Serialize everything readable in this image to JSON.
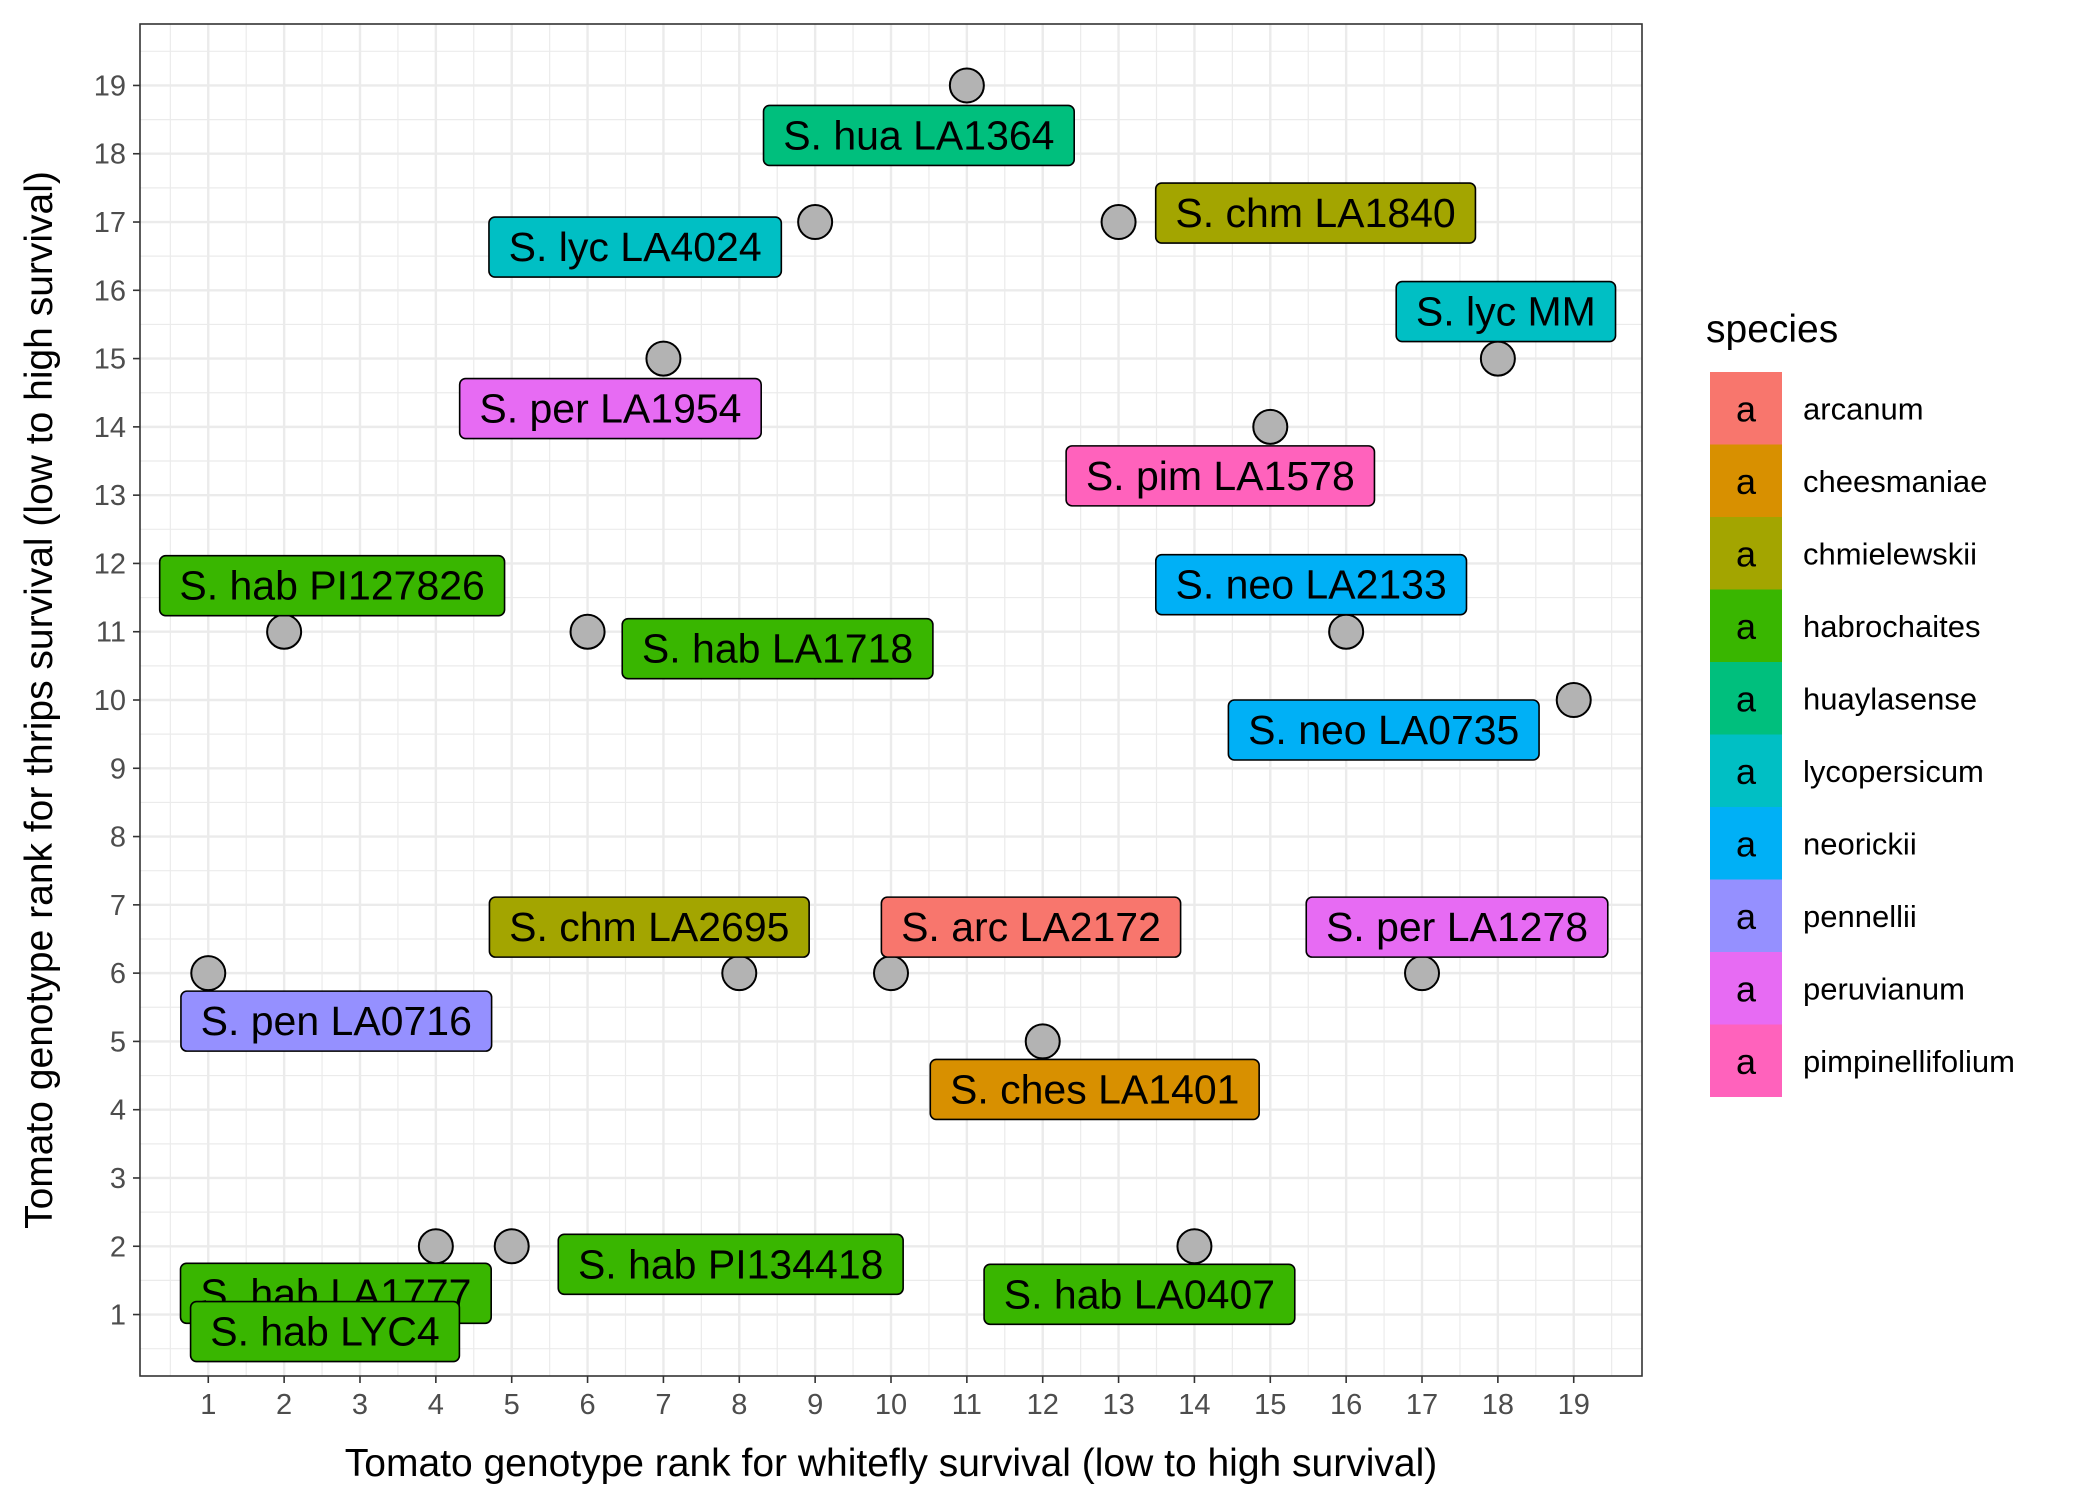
{
  "chart_data": {
    "type": "scatter",
    "title": "",
    "xlabel": "Tomato genotype rank for whitefly survival (low to high survival)",
    "ylabel": "Tomato genotype rank for thrips survival (low to high survival)",
    "xlim": [
      0.1,
      19.9
    ],
    "ylim": [
      0.1,
      19.9
    ],
    "xticks": [
      "1",
      "2",
      "3",
      "4",
      "5",
      "6",
      "7",
      "8",
      "9",
      "10",
      "11",
      "12",
      "13",
      "14",
      "15",
      "16",
      "17",
      "18",
      "19"
    ],
    "yticks": [
      "1",
      "2",
      "3",
      "4",
      "5",
      "6",
      "7",
      "8",
      "9",
      "10",
      "11",
      "12",
      "13",
      "14",
      "15",
      "16",
      "17",
      "18",
      "19"
    ],
    "grid": true,
    "point_color": "#b3b3b3",
    "legend": {
      "title": "species",
      "position": "right",
      "key_glyph": "a",
      "entries": [
        {
          "name": "arcanum",
          "color": "#F8766D"
        },
        {
          "name": "cheesmaniae",
          "color": "#D89000"
        },
        {
          "name": "chmielewskii",
          "color": "#A3A500"
        },
        {
          "name": "habrochaites",
          "color": "#39B600"
        },
        {
          "name": "huaylasense",
          "color": "#00BF7D"
        },
        {
          "name": "lycopersicum",
          "color": "#00BFC4"
        },
        {
          "name": "neorickii",
          "color": "#00B0F6"
        },
        {
          "name": "pennellii",
          "color": "#9590FF"
        },
        {
          "name": "peruvianum",
          "color": "#E76BF3"
        },
        {
          "name": "pimpinellifolium",
          "color": "#FF62BC"
        }
      ]
    },
    "points": [
      {
        "label": "S.  hua LA1364",
        "species": "huaylasense",
        "x": 11,
        "y": 19
      },
      {
        "label": "S.  chm LA1840",
        "species": "chmielewskii",
        "x": 13,
        "y": 17
      },
      {
        "label": "S.  lyc LA4024",
        "species": "lycopersicum",
        "x": 9,
        "y": 17
      },
      {
        "label": "S.  lyc MM",
        "species": "lycopersicum",
        "x": 18,
        "y": 15
      },
      {
        "label": "S.  per LA1954",
        "species": "peruvianum",
        "x": 7,
        "y": 15
      },
      {
        "label": "S.  pim LA1578",
        "species": "pimpinellifolium",
        "x": 15,
        "y": 14
      },
      {
        "label": "S.  hab PI127826",
        "species": "habrochaites",
        "x": 2,
        "y": 11
      },
      {
        "label": "S.  neo LA2133",
        "species": "neorickii",
        "x": 16,
        "y": 11
      },
      {
        "label": "S.  hab LA1718",
        "species": "habrochaites",
        "x": 6,
        "y": 11
      },
      {
        "label": "S.  neo LA0735",
        "species": "neorickii",
        "x": 19,
        "y": 10
      },
      {
        "label": "S.  chm LA2695",
        "species": "chmielewskii",
        "x": 8,
        "y": 6
      },
      {
        "label": "S.  arc LA2172",
        "species": "arcanum",
        "x": 10,
        "y": 6
      },
      {
        "label": "S.  per LA1278",
        "species": "peruvianum",
        "x": 17,
        "y": 6
      },
      {
        "label": "S.  pen LA0716",
        "species": "pennellii",
        "x": 1,
        "y": 6
      },
      {
        "label": "S.  ches LA1401",
        "species": "cheesmaniae",
        "x": 12,
        "y": 5
      },
      {
        "label": "S.  hab LA1777",
        "species": "habrochaites",
        "x": 4,
        "y": 2
      },
      {
        "label": "S.  hab PI134418",
        "species": "habrochaites",
        "x": 5,
        "y": 2
      },
      {
        "label": "S.  hab LA0407",
        "species": "habrochaites",
        "x": 14,
        "y": 2
      },
      {
        "label": "S.  hab LYC4",
        "species": "habrochaites",
        "x": 3,
        "y": 1
      }
    ]
  }
}
